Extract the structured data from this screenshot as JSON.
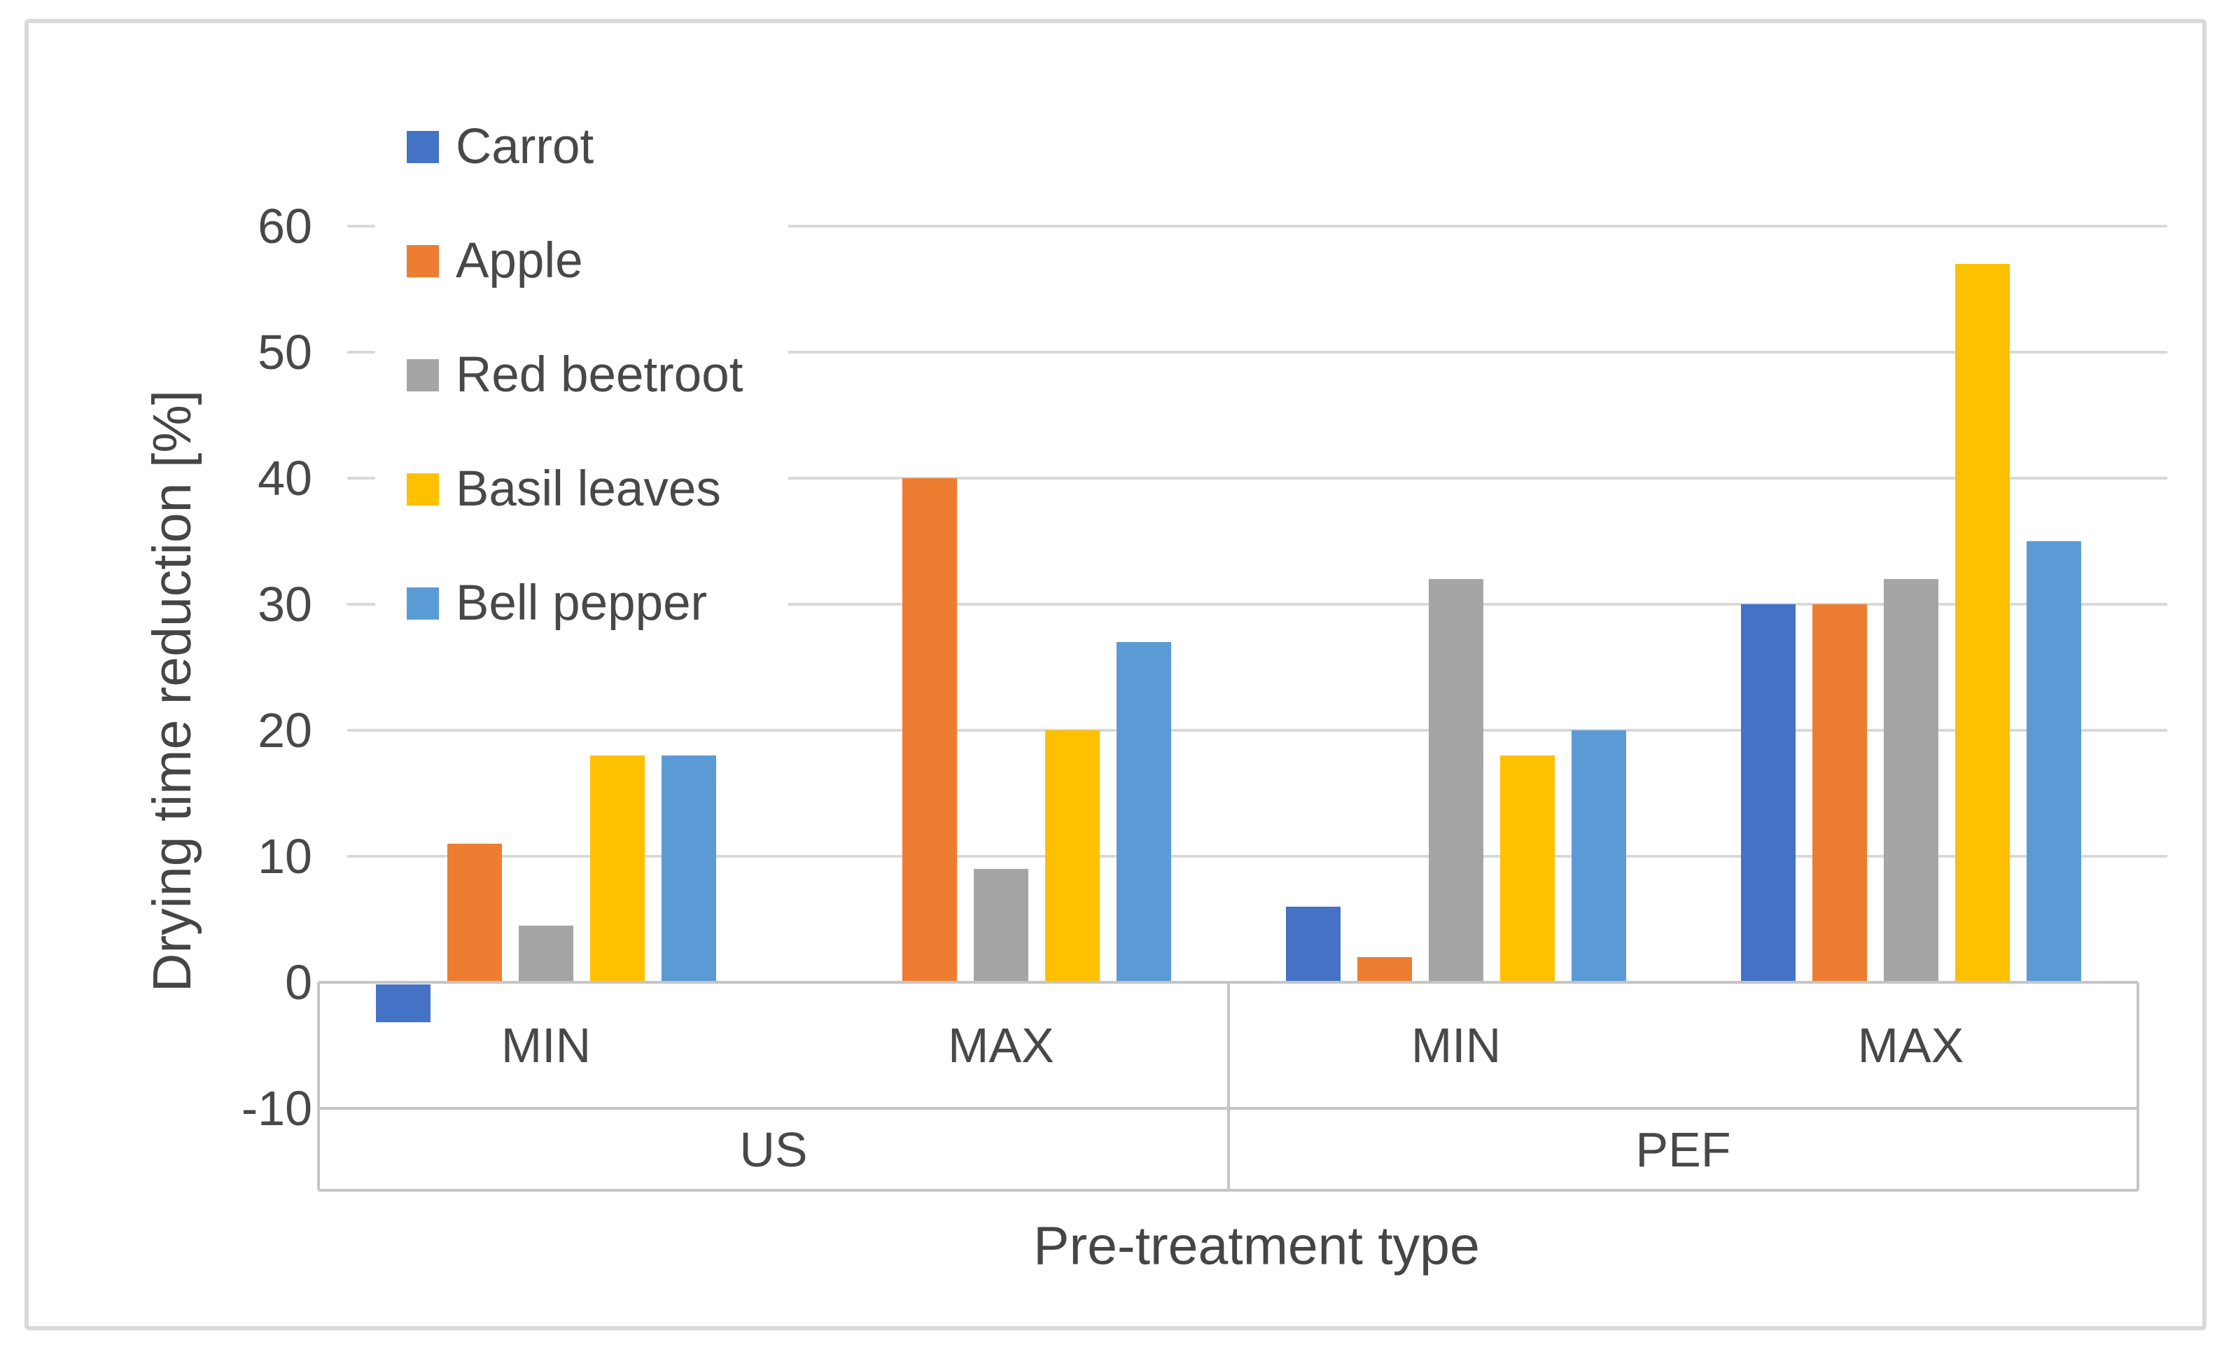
{
  "style": {
    "background": "#ffffff",
    "frame_border_color": "#d9d9d9",
    "text_color": "#484848",
    "gridline_color": "#d9d9d9",
    "axis_line_color": "#c5c5c5"
  },
  "chart_data": {
    "type": "bar",
    "title": "",
    "xlabel": "Pre-treatment type",
    "ylabel": "Drying time reduction [%]",
    "ylim": [
      -10,
      60
    ],
    "yticks": [
      60,
      50,
      40,
      30,
      20,
      10,
      0,
      -10
    ],
    "grid": true,
    "legend_position": "upper-left-overlay",
    "categories": [
      "US MIN",
      "US MAX",
      "PEF MIN",
      "PEF MAX"
    ],
    "category_groups": [
      {
        "label": "US",
        "sub": [
          "MIN",
          "MAX"
        ]
      },
      {
        "label": "PEF",
        "sub": [
          "MIN",
          "MAX"
        ]
      }
    ],
    "series": [
      {
        "name": "Carrot",
        "color": "#4472C4",
        "values": [
          -3,
          0,
          6,
          30
        ]
      },
      {
        "name": "Apple",
        "color": "#ED7D31",
        "values": [
          11,
          40,
          2,
          30
        ]
      },
      {
        "name": "Red beetroot",
        "color": "#A5A5A5",
        "values": [
          4.5,
          9,
          32,
          32
        ]
      },
      {
        "name": "Basil leaves",
        "color": "#FFC000",
        "values": [
          18,
          20,
          18,
          57
        ]
      },
      {
        "name": "Bell pepper",
        "color": "#5B9BD5",
        "values": [
          18,
          27,
          20,
          35
        ]
      }
    ]
  }
}
